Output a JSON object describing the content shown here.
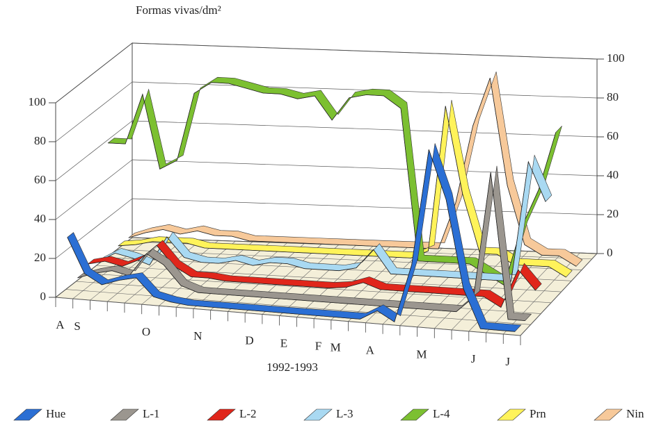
{
  "chart_data": {
    "type": "ribbon3d",
    "title": "Formas vivas/dm²",
    "xlabel": "1992-1993",
    "categories": [
      "A",
      "S",
      null,
      null,
      null,
      "O",
      null,
      null,
      "N",
      null,
      null,
      "D",
      null,
      "E",
      null,
      "F",
      "M",
      null,
      "A",
      null,
      null,
      "M",
      null,
      null,
      "J",
      null,
      "J"
    ],
    "ylim": [
      0,
      100
    ],
    "yticks": [
      0,
      20,
      40,
      60,
      80,
      100
    ],
    "y2lim": [
      0,
      100
    ],
    "y2ticks": [
      0,
      20,
      40,
      60,
      80,
      100
    ],
    "series": [
      {
        "name": "Hue",
        "color": "#2b6fd4",
        "values": [
          30,
          12,
          7,
          10,
          12,
          3,
          1,
          0,
          0,
          0,
          0,
          0,
          0,
          0,
          0,
          0,
          0,
          0,
          5,
          0,
          30,
          90,
          65,
          20,
          0,
          0,
          0
        ]
      },
      {
        "name": "L-1",
        "color": "#9b968f",
        "values": [
          5,
          8,
          10,
          8,
          20,
          15,
          5,
          2,
          2,
          2,
          2,
          2,
          2,
          2,
          2,
          2,
          2,
          2,
          2,
          2,
          2,
          2,
          2,
          10,
          75,
          0,
          0
        ]
      },
      {
        "name": "L-2",
        "color": "#e0261b",
        "values": [
          8,
          10,
          8,
          12,
          20,
          10,
          5,
          5,
          4,
          4,
          4,
          4,
          4,
          4,
          4,
          5,
          8,
          5,
          5,
          5,
          5,
          5,
          5,
          5,
          0,
          20,
          10
        ]
      },
      {
        "name": "L-3",
        "color": "#a9d9f2",
        "values": [
          5,
          10,
          8,
          5,
          20,
          10,
          8,
          8,
          10,
          8,
          10,
          10,
          8,
          8,
          8,
          10,
          20,
          8,
          8,
          8,
          8,
          8,
          8,
          8,
          8,
          70,
          50
        ]
      },
      {
        "name": "L-4",
        "color": "#7cc031",
        "values": [
          62,
          62,
          88,
          50,
          55,
          90,
          96,
          96,
          94,
          92,
          92,
          90,
          92,
          80,
          92,
          94,
          94,
          88,
          10,
          10,
          10,
          10,
          5,
          0,
          30,
          50,
          80
        ]
      },
      {
        "name": "Prn",
        "color": "#fff35a",
        "values": [
          5,
          6,
          8,
          8,
          8,
          6,
          6,
          6,
          6,
          6,
          6,
          6,
          6,
          6,
          6,
          6,
          6,
          6,
          10,
          85,
          40,
          10,
          10,
          5,
          5,
          5,
          0
        ]
      },
      {
        "name": "Nin",
        "color": "#f7c99a",
        "values": [
          5,
          8,
          10,
          8,
          10,
          8,
          8,
          6,
          6,
          6,
          6,
          6,
          6,
          6,
          6,
          6,
          6,
          6,
          6,
          30,
          70,
          95,
          40,
          10,
          5,
          5,
          0
        ]
      }
    ]
  }
}
